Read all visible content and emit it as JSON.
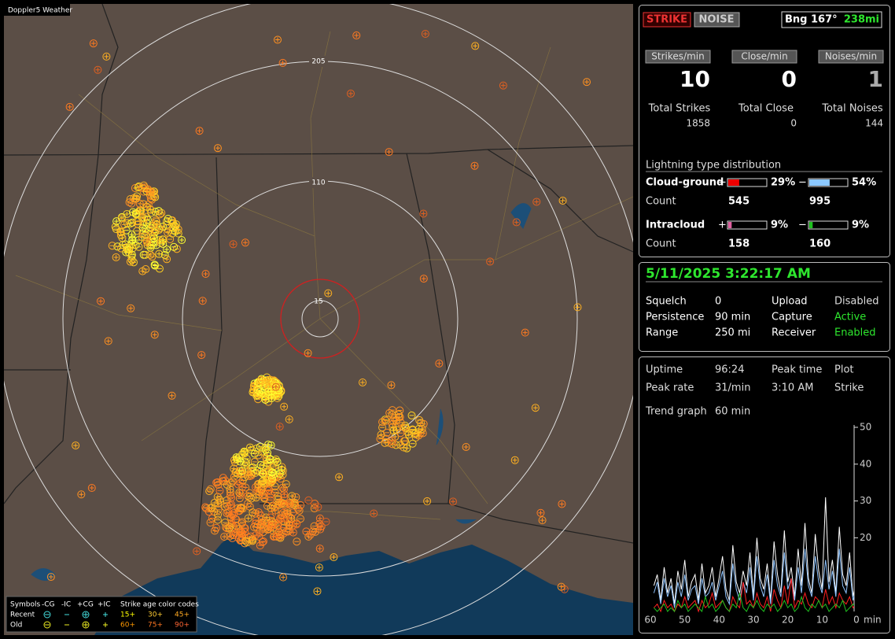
{
  "map": {
    "title": "Doppler5 Weather",
    "rings": [
      "205",
      "110",
      "15"
    ],
    "legend": {
      "symbols": "Symbols",
      "types": [
        "-CG",
        "-IC",
        "+CG",
        "+IC"
      ],
      "age_title": "Strike age color codes",
      "rows": [
        "Recent",
        "Old"
      ],
      "ages": [
        [
          "15+",
          "30+",
          "45+"
        ],
        [
          "60+",
          "75+",
          "90+"
        ]
      ]
    }
  },
  "status": {
    "strike": "STRIKE",
    "noise": "NOISE",
    "bearing": "Bng 167°",
    "distance": "238mi",
    "rates": [
      {
        "label": "Strikes/min",
        "value": 10,
        "total_label": "Total Strikes",
        "total": 1858
      },
      {
        "label": "Close/min",
        "value": 0,
        "total_label": "Total Close",
        "total": 0
      },
      {
        "label": "Noises/min",
        "value": 1,
        "total_label": "Total Noises",
        "total": 144
      }
    ],
    "distribution": {
      "title": "Lightning type distribution",
      "count_label": "Count",
      "plus_sign": "+",
      "minus_sign": "−",
      "rows": [
        {
          "name": "Cloud-ground",
          "plus": {
            "value": 29,
            "label": "29%"
          },
          "minus": {
            "value": 54,
            "label": "54%"
          },
          "plus_count": 545,
          "minus_count": 995
        },
        {
          "name": "Intracloud",
          "plus": {
            "value": 9,
            "label": "9%"
          },
          "minus": {
            "value": 9,
            "label": "9%"
          },
          "plus_count": 158,
          "minus_count": 160
        }
      ]
    }
  },
  "clock": {
    "datetime": "5/11/2025 3:22:17 AM",
    "fields": [
      [
        "Squelch",
        "0",
        "Upload",
        "Disabled"
      ],
      [
        "Persistence",
        "90 min",
        "Capture",
        "Active"
      ],
      [
        "Range",
        "250 mi",
        "Receiver",
        "Enabled"
      ]
    ]
  },
  "stats": {
    "fields": [
      [
        "Uptime",
        "96:24",
        "Peak time",
        "Plot"
      ],
      [
        "Peak rate",
        "31/min",
        "3:10 AM",
        "Strike"
      ]
    ],
    "trend_label": "Trend graph",
    "trend_window": "60 min",
    "chart": {
      "type": "line",
      "x_unit": "min",
      "xlim": [
        60,
        0
      ],
      "xticks": [
        60,
        50,
        40,
        30,
        20,
        10,
        0
      ],
      "ylim": [
        0,
        50
      ],
      "yticks": [
        20,
        30,
        40,
        50
      ],
      "x": [
        59,
        58,
        57,
        56,
        55,
        54,
        53,
        52,
        51,
        50,
        49,
        48,
        47,
        46,
        45,
        44,
        43,
        42,
        41,
        40,
        39,
        38,
        37,
        36,
        35,
        34,
        33,
        32,
        31,
        30,
        29,
        28,
        27,
        26,
        25,
        24,
        23,
        22,
        21,
        20,
        19,
        18,
        17,
        16,
        15,
        14,
        13,
        12,
        11,
        10,
        9,
        8,
        7,
        6,
        5,
        4,
        3,
        2,
        1,
        0
      ],
      "series": [
        {
          "color": "#ffffff",
          "values": [
            7,
            10,
            3,
            12,
            5,
            9,
            2,
            11,
            6,
            14,
            4,
            8,
            10,
            3,
            13,
            5,
            7,
            12,
            4,
            9,
            15,
            6,
            3,
            18,
            8,
            5,
            11,
            7,
            16,
            4,
            20,
            9,
            6,
            13,
            3,
            19,
            10,
            5,
            22,
            8,
            12,
            4,
            17,
            7,
            24,
            9,
            5,
            21,
            11,
            6,
            31,
            8,
            14,
            5,
            23,
            10,
            7,
            16,
            4,
            9
          ]
        },
        {
          "color": "#8fc4ff",
          "values": [
            5,
            8,
            2,
            9,
            4,
            7,
            1,
            8,
            4,
            10,
            3,
            6,
            7,
            2,
            9,
            4,
            5,
            8,
            3,
            7,
            11,
            4,
            2,
            13,
            6,
            3,
            8,
            5,
            12,
            3,
            15,
            7,
            4,
            10,
            2,
            14,
            7,
            4,
            16,
            6,
            9,
            3,
            12,
            5,
            17,
            7,
            4,
            15,
            8,
            5,
            14,
            6,
            11,
            4,
            17,
            7,
            5,
            12,
            3,
            7
          ]
        },
        {
          "color": "#ff2020",
          "values": [
            1,
            2,
            0,
            3,
            1,
            2,
            0,
            2,
            1,
            4,
            1,
            2,
            3,
            0,
            3,
            1,
            2,
            5,
            1,
            2,
            3,
            1,
            0,
            4,
            2,
            1,
            8,
            2,
            3,
            1,
            5,
            2,
            1,
            4,
            0,
            6,
            3,
            1,
            7,
            2,
            9,
            1,
            3,
            2,
            5,
            2,
            1,
            4,
            3,
            1,
            6,
            2,
            4,
            1,
            5,
            3,
            2,
            4,
            1,
            2
          ]
        },
        {
          "color": "#20c020",
          "values": [
            1,
            0,
            1,
            2,
            0,
            1,
            0,
            3,
            1,
            2,
            0,
            1,
            2,
            1,
            0,
            4,
            1,
            2,
            0,
            1,
            3,
            1,
            0,
            2,
            1,
            5,
            1,
            0,
            2,
            1,
            3,
            1,
            0,
            2,
            1,
            2,
            0,
            1,
            3,
            1,
            2,
            0,
            1,
            4,
            1,
            0,
            2,
            1,
            3,
            1,
            2,
            0,
            1,
            2,
            1,
            3,
            0,
            1,
            2,
            1
          ]
        }
      ]
    }
  }
}
